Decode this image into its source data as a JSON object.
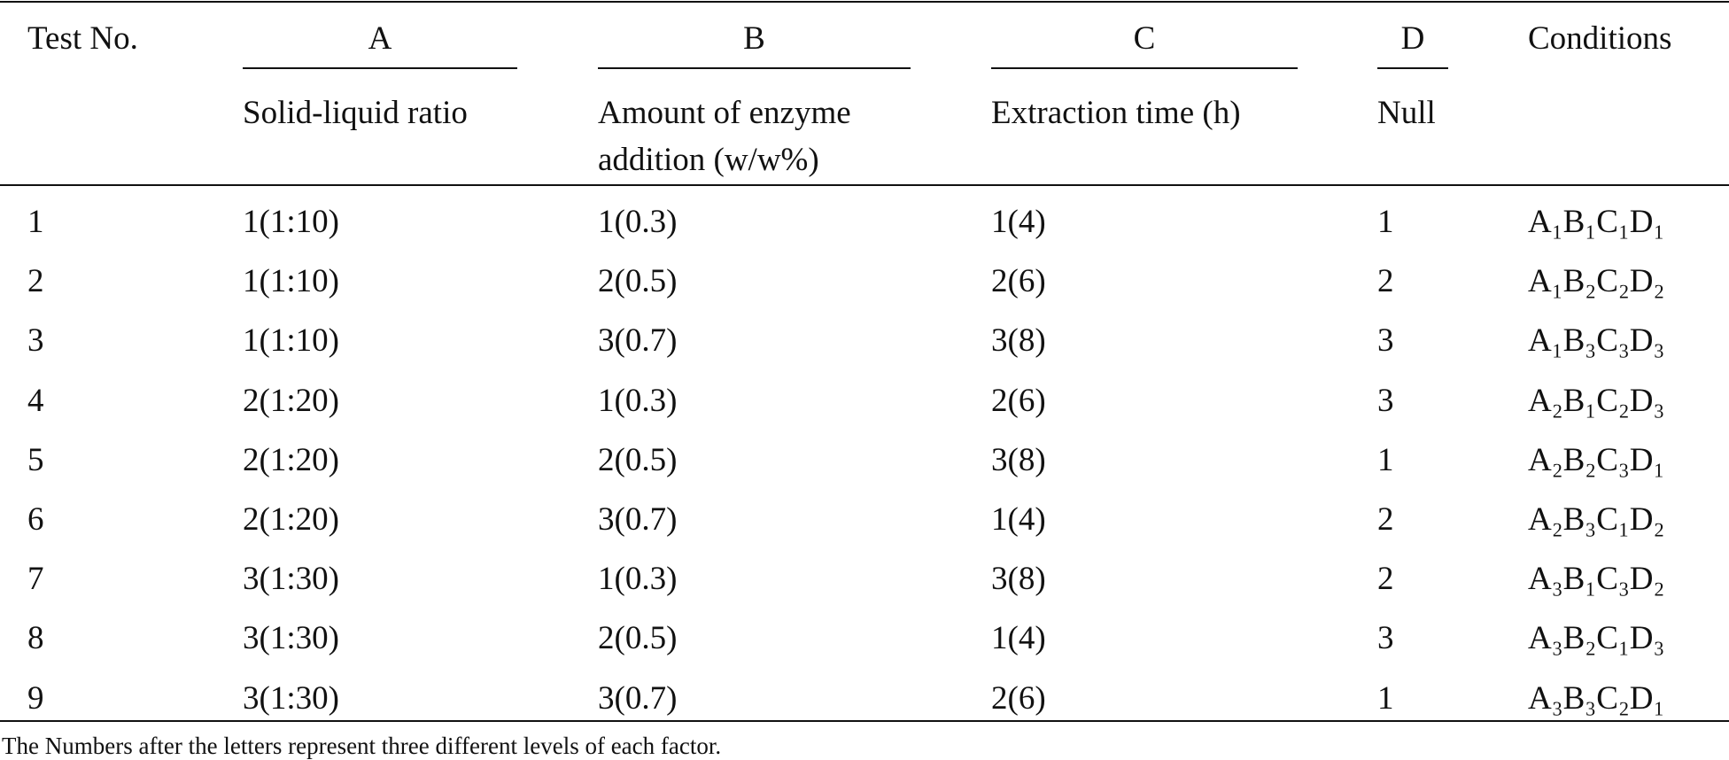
{
  "table": {
    "header": {
      "test_no": "Test No.",
      "factors": [
        {
          "letter": "A",
          "label": [
            "Solid-liquid ratio"
          ]
        },
        {
          "letter": "B",
          "label": [
            "Amount of enzyme",
            "addition (w/w%)"
          ]
        },
        {
          "letter": "C",
          "label": [
            "Extraction time (h)"
          ]
        },
        {
          "letter": "D",
          "label": [
            "Null"
          ]
        }
      ],
      "conditions": "Conditions"
    },
    "rows": [
      [
        "1",
        "1(1:10)",
        "1(0.3)",
        "1(4)",
        "1",
        "A₁B₁C₁D₁"
      ],
      [
        "2",
        "1(1:10)",
        "2(0.5)",
        "2(6)",
        "2",
        "A₁B₂C₂D₂"
      ],
      [
        "3",
        "1(1:10)",
        "3(0.7)",
        "3(8)",
        "3",
        "A₁B₃C₃D₃"
      ],
      [
        "4",
        "2(1:20)",
        "1(0.3)",
        "2(6)",
        "3",
        "A₂B₁C₂D₃"
      ],
      [
        "5",
        "2(1:20)",
        "2(0.5)",
        "3(8)",
        "1",
        "A₂B₂C₃D₁"
      ],
      [
        "6",
        "2(1:20)",
        "3(0.7)",
        "1(4)",
        "2",
        "A₂B₃C₁D₂"
      ],
      [
        "7",
        "3(1:30)",
        "1(0.3)",
        "3(8)",
        "2",
        "A₃B₁C₃D₂"
      ],
      [
        "8",
        "3(1:30)",
        "2(0.5)",
        "1(4)",
        "3",
        "A₃B₂C₁D₃"
      ],
      [
        "9",
        "3(1:30)",
        "3(0.7)",
        "2(6)",
        "1",
        "A₃B₃C₂D₁"
      ]
    ],
    "footnote": "The Numbers after the letters represent three different levels of each factor."
  }
}
